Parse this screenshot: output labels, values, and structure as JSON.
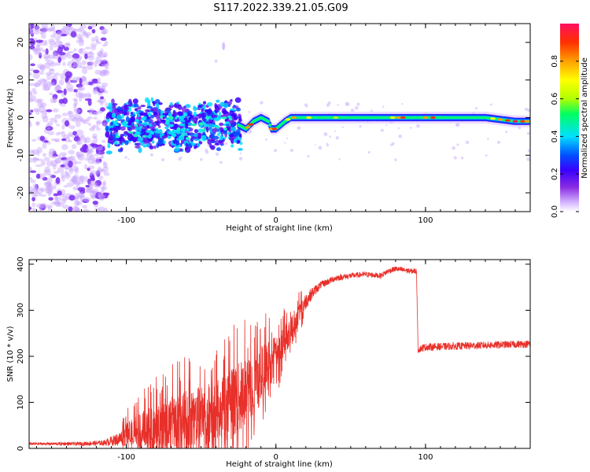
{
  "figure_title": "S117.2022.339.21.05.G09",
  "chart_data": [
    {
      "type": "heatmap",
      "xlabel": "Height of straight line (km)",
      "ylabel": "Frequency (Hz)",
      "xlim": [
        -165,
        170
      ],
      "ylim": [
        -25,
        25
      ],
      "xticks": [
        -100,
        0,
        100
      ],
      "yticks": [
        -20,
        -10,
        0,
        10,
        20
      ],
      "xtick_labels": [
        "-100",
        "0",
        "100"
      ],
      "ytick_labels": [
        "-20",
        "-10",
        "0",
        "10",
        "20"
      ],
      "grid": false,
      "colorbar": {
        "label": "Normalized spectral amplitude",
        "range": [
          0,
          1
        ],
        "ticks": [
          "0.0",
          "0.2",
          "0.4",
          "0.6",
          "0.8"
        ],
        "colors": [
          "#ffffff",
          "#d4b3ff",
          "#8a2be2",
          "#3a00ff",
          "#0050ff",
          "#00e0ff",
          "#00ff60",
          "#b0ff00",
          "#ffff00",
          "#ffa000",
          "#ff3000",
          "#ff1060"
        ]
      },
      "peak_frequency_track": {
        "x": [
          -115,
          -100,
          -80,
          -60,
          -40,
          -30,
          -25,
          -20,
          -15,
          -10,
          -5,
          -3,
          0,
          3,
          6,
          10,
          20,
          40,
          60,
          80,
          100,
          120,
          140,
          160,
          170
        ],
        "y": [
          -3,
          -2,
          -2,
          -3,
          -2,
          -1,
          -2,
          -3,
          -1,
          0,
          -1,
          -3,
          -3,
          -2,
          -1,
          0,
          0,
          0,
          0,
          0,
          0,
          0,
          0,
          -1,
          -1
        ]
      },
      "regions": [
        {
          "x_range": [
            -165,
            -113
          ],
          "description": "noise",
          "amplitude": 0.3
        },
        {
          "x_range": [
            -113,
            -25
          ],
          "freq_range": [
            -10,
            5
          ],
          "amplitude": 0.5
        },
        {
          "x_range": [
            -25,
            170
          ],
          "freq_range": [
            -2,
            1
          ],
          "amplitude": 0.85
        }
      ]
    },
    {
      "type": "line",
      "xlabel": "Height of straight line (km)",
      "ylabel": "SNR (10 * v/v)",
      "xlim": [
        -165,
        170
      ],
      "ylim": [
        0,
        410
      ],
      "xticks": [
        -100,
        0,
        100
      ],
      "yticks": [
        0,
        100,
        200,
        300,
        400
      ],
      "xtick_labels": [
        "-100",
        "0",
        "100"
      ],
      "ytick_labels": [
        "0",
        "100",
        "200",
        "300",
        "400"
      ],
      "grid": false,
      "series": [
        {
          "color": "#e8302a",
          "x": [
            -165,
            -150,
            -130,
            -115,
            -105,
            -100,
            -90,
            -80,
            -70,
            -60,
            -50,
            -40,
            -30,
            -20,
            -10,
            0,
            5,
            10,
            15,
            20,
            25,
            30,
            40,
            50,
            60,
            70,
            75,
            80,
            90,
            94,
            95,
            100,
            120,
            140,
            160,
            170
          ],
          "y": [
            10,
            10,
            10,
            12,
            20,
            30,
            40,
            50,
            55,
            60,
            70,
            80,
            100,
            120,
            160,
            200,
            230,
            260,
            290,
            320,
            340,
            355,
            370,
            375,
            378,
            375,
            385,
            390,
            385,
            385,
            215,
            220,
            222,
            224,
            226,
            227
          ],
          "noise_amplitude": [
            3,
            3,
            4,
            6,
            15,
            25,
            40,
            55,
            60,
            65,
            65,
            70,
            75,
            75,
            65,
            45,
            35,
            30,
            25,
            18,
            12,
            8,
            7,
            6,
            6,
            6,
            6,
            6,
            6,
            6,
            8,
            8,
            8,
            8,
            8,
            8
          ]
        }
      ]
    }
  ]
}
